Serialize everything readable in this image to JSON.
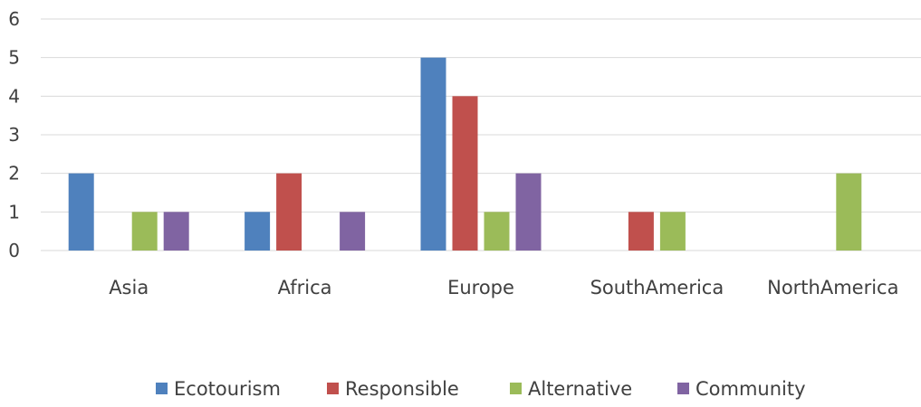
{
  "chart_data": {
    "type": "bar",
    "categories": [
      "Asia",
      "Africa",
      "Europe",
      "SouthAmerica",
      "NorthAmerica"
    ],
    "series": [
      {
        "name": "Ecotourism",
        "values": [
          2,
          1,
          5,
          0,
          0
        ],
        "color": "#4f81bd"
      },
      {
        "name": "Responsible",
        "values": [
          0,
          2,
          4,
          1,
          0
        ],
        "color": "#c0504d"
      },
      {
        "name": "Alternative",
        "values": [
          1,
          0,
          1,
          1,
          2
        ],
        "color": "#9bbb59"
      },
      {
        "name": "Community",
        "values": [
          1,
          1,
          2,
          0,
          0
        ],
        "color": "#8064a2"
      }
    ],
    "yticks": [
      0,
      1,
      2,
      3,
      4,
      5,
      6
    ],
    "ylim": [
      0,
      6
    ],
    "grid": true,
    "legend": "bottom",
    "gridline_color": "#d9d9d9",
    "text_color": "#404040"
  }
}
